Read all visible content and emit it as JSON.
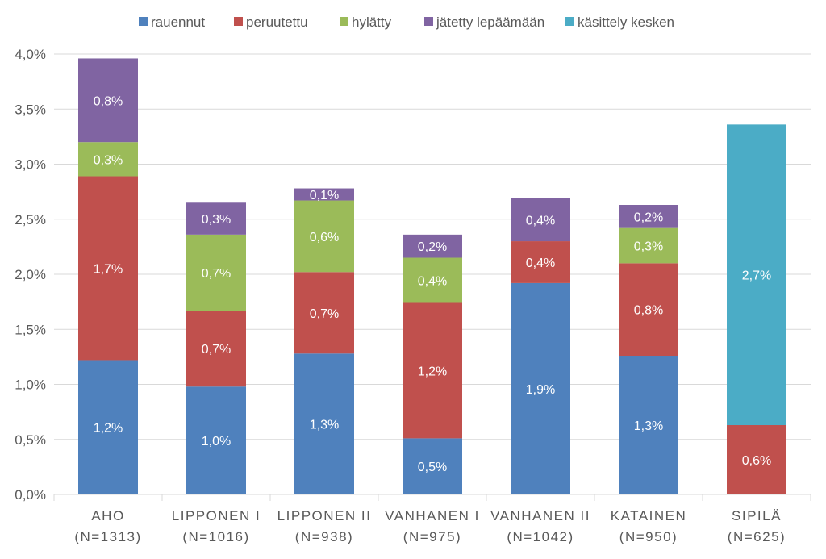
{
  "chart_data": {
    "type": "bar",
    "stacked": true,
    "title": "",
    "xlabel": "",
    "ylabel": "",
    "ylim": [
      0,
      4.0
    ],
    "y_ticks": [
      "0,0%",
      "0,5%",
      "1,0%",
      "1,5%",
      "2,0%",
      "2,5%",
      "3,0%",
      "3,5%",
      "4,0%"
    ],
    "y_tick_values": [
      0,
      0.5,
      1.0,
      1.5,
      2.0,
      2.5,
      3.0,
      3.5,
      4.0
    ],
    "grid": true,
    "legend_position": "top",
    "categories": [
      {
        "name": "AHO",
        "n": "(N=1313)"
      },
      {
        "name": "LIPPONEN I",
        "n": "(N=1016)"
      },
      {
        "name": "LIPPONEN II",
        "n": "(N=938)"
      },
      {
        "name": "VANHANEN I",
        "n": "(N=975)"
      },
      {
        "name": "VANHANEN II",
        "n": "(N=1042)"
      },
      {
        "name": "KATAINEN",
        "n": "(N=950)"
      },
      {
        "name": "SIPILÄ",
        "n": "(N=625)"
      }
    ],
    "series": [
      {
        "name": "rauennut",
        "color": "#4F81BD",
        "values": [
          1.22,
          0.98,
          1.28,
          0.51,
          1.92,
          1.26,
          0
        ],
        "labels": [
          "1,2%",
          "1,0%",
          "1,3%",
          "0,5%",
          "1,9%",
          "1,3%",
          ""
        ]
      },
      {
        "name": "peruutettu",
        "color": "#C0504D",
        "values": [
          1.67,
          0.69,
          0.74,
          1.23,
          0.38,
          0.84,
          0.63
        ],
        "labels": [
          "1,7%",
          "0,7%",
          "0,7%",
          "1,2%",
          "0,4%",
          "0,8%",
          "0,6%"
        ]
      },
      {
        "name": "hylätty",
        "color": "#9BBB59",
        "values": [
          0.31,
          0.69,
          0.65,
          0.41,
          0,
          0.32,
          0
        ],
        "labels": [
          "0,3%",
          "0,7%",
          "0,6%",
          "0,4%",
          "",
          "0,3%",
          ""
        ]
      },
      {
        "name": "jätetty lepäämään",
        "color": "#8064A2",
        "values": [
          0.76,
          0.29,
          0.11,
          0.21,
          0.39,
          0.21,
          0
        ],
        "labels": [
          "0,8%",
          "0,3%",
          "0,1%",
          "0,2%",
          "0,4%",
          "0,2%",
          ""
        ]
      },
      {
        "name": "käsittely kesken",
        "color": "#4BACC6",
        "values": [
          0,
          0,
          0,
          0,
          0,
          0,
          2.73
        ],
        "labels": [
          "",
          "",
          "",
          "",
          "",
          "",
          "2,7%"
        ]
      }
    ]
  }
}
